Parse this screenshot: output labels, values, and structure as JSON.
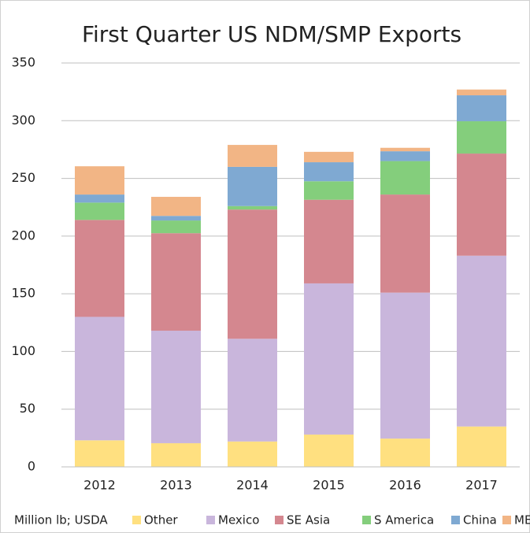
{
  "chart_data": {
    "type": "bar",
    "stacked": true,
    "title": "First Quarter US NDM/SMP Exports",
    "note": "Million lb; USDA",
    "categories": [
      "2012",
      "2013",
      "2014",
      "2015",
      "2016",
      "2017"
    ],
    "series": [
      {
        "name": "Other",
        "color": "#ffe080",
        "values": [
          23,
          20.5,
          22,
          28,
          24.5,
          35
        ]
      },
      {
        "name": "Mexico",
        "color": "#c9b6dc",
        "values": [
          107,
          97.5,
          89,
          131,
          126.5,
          148
        ]
      },
      {
        "name": "SE Asia",
        "color": "#d4878f",
        "values": [
          84,
          84.5,
          112,
          72.5,
          85,
          88.5
        ]
      },
      {
        "name": "S America",
        "color": "#84ce7c",
        "values": [
          15,
          11,
          3,
          16,
          29,
          28
        ]
      },
      {
        "name": "China",
        "color": "#7fa9d2",
        "values": [
          7,
          4,
          34,
          16.5,
          8.5,
          22.5
        ]
      },
      {
        "name": "MENA",
        "color": "#f2b585",
        "values": [
          24.5,
          16.5,
          19,
          9,
          3,
          5
        ]
      }
    ],
    "ylim": [
      0,
      350
    ],
    "yticks": [
      0,
      50,
      100,
      150,
      200,
      250,
      300,
      350
    ],
    "grid": true,
    "legend": "bottom"
  }
}
